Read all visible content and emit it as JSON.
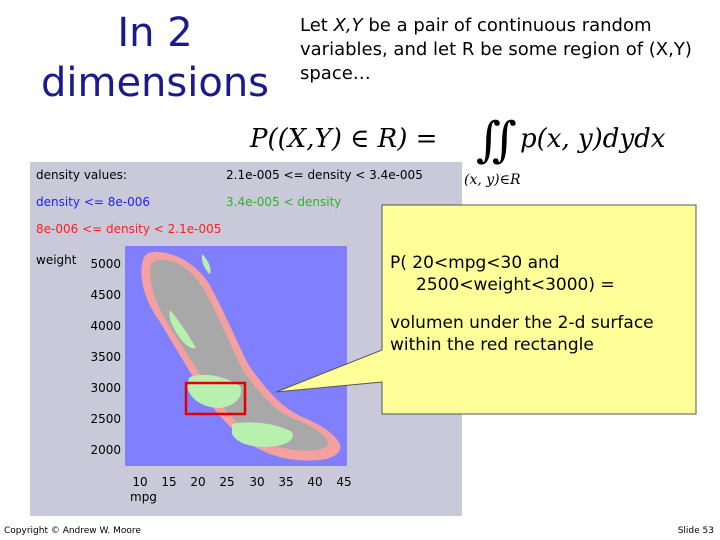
{
  "slide": {
    "title_line1": "In 2",
    "title_line2": "dimensions",
    "intro": {
      "p1": "Let ",
      "xy": "X,Y",
      "p2": " be a pair of continuous random variables, and let R be some region of (X,Y) space…"
    },
    "formula": {
      "lhs": "P((X,Y) ∈ R) =",
      "integral": "∬",
      "rhs": "p(x, y)dydx",
      "subscript": "(x, y)∈R"
    },
    "callout": {
      "line1": "P( 20<mpg<30 and",
      "line2": "2500<weight<3000) =",
      "line3": "volumen under the 2-d surface",
      "line4": "within the red rectangle"
    },
    "footer_left": "Copyright © Andrew W. Moore",
    "footer_right": "Slide 53"
  },
  "chart_data": {
    "type": "heatmap",
    "legend": {
      "title": "density values:",
      "bin_blue": "density <= 8e-006",
      "bin_red": "8e-006 <= density < 2.1e-005",
      "bin_dark": "2.1e-005 <= density < 3.4e-005",
      "bin_green": "3.4e-005 < density"
    },
    "xlabel": "mpg",
    "ylabel": "weight",
    "x_ticks": [
      "10",
      "15",
      "20",
      "25",
      "30",
      "35",
      "40",
      "45"
    ],
    "y_ticks": [
      "5000",
      "4500",
      "4000",
      "3500",
      "3000",
      "2500",
      "2000"
    ],
    "xlim": [
      10,
      45
    ],
    "ylim": [
      2000,
      5000
    ],
    "highlight_region": {
      "x": [
        20,
        30
      ],
      "y": [
        2500,
        3000
      ]
    },
    "colors": {
      "blue": "#8080ff",
      "pink": "#f4a0a0",
      "gray": "#a8a8a8",
      "green": "#b8f0b0",
      "red": "#e00000",
      "callout": "#ffff99"
    }
  }
}
